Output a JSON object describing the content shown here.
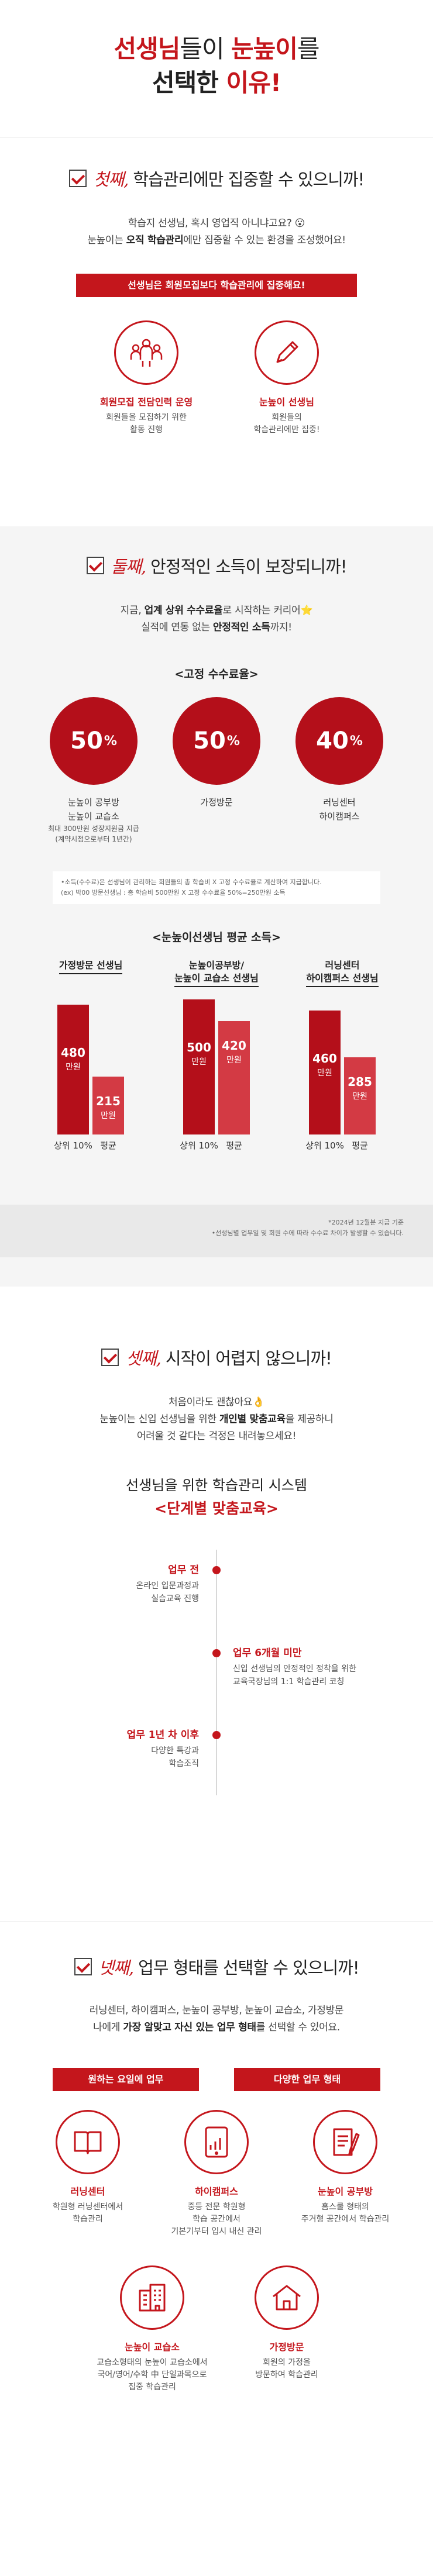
{
  "hero": {
    "line1_red": "선생님",
    "line1_mid": "들이 ",
    "line1_brand": "눈높이",
    "line1_end": "를",
    "line2_start": "선택한 ",
    "line2_end": "이유!"
  },
  "s1": {
    "script": "첫째,",
    "title_normal": " 학습관리에만 집중할 수 있으니까!",
    "p1": "학습지 선생님, 혹시 영업직 아니냐고요? 😮",
    "p2_a": "눈높이는 ",
    "p2_b": "오직 학습관리",
    "p2_c": "에만 집중할 수 있는 환경을 조성했어요!",
    "banner": "선생님은 회원모집보다 학습관리에 집중해요!",
    "items": [
      {
        "label": "회원모집 전담인력 운영",
        "desc1": "회원들을 모집하기 위한",
        "desc2": "활동 진행"
      },
      {
        "label": "눈높이 선생님",
        "desc1": "회원들의",
        "desc2": "학습관리에만 집중!"
      }
    ]
  },
  "s2": {
    "script": "둘째,",
    "title_normal": " 안정적인 소득이 보장되니까!",
    "p1_a": "지금, ",
    "p1_b": "업계 상위 수수료율",
    "p1_c": "로 시작하는 커리어⭐",
    "p2_a": "실적에 연동 없는 ",
    "p2_b": "안정적인 소득",
    "p2_c": "까지!",
    "fixed_rate_title": "<고정 수수료율>",
    "rates": [
      {
        "value": "50",
        "unit": "%",
        "l1": "눈높이 공부방",
        "l2": "눈높이 교습소",
        "l3": "최대 300만원 성장지원금 지급",
        "l4": "(계약시점으로부터 1년간)"
      },
      {
        "value": "50",
        "unit": "%",
        "l1": "가정방문",
        "l2": "",
        "l3": "",
        "l4": ""
      },
      {
        "value": "40",
        "unit": "%",
        "l1": "러닝센터",
        "l2": "하이캠퍼스",
        "l3": "",
        "l4": ""
      }
    ],
    "rate_note1": "•소득(수수료)은 선생님이 관리하는 회원들의 총 학습비 X 고정 수수료율로 계산하여 지급합니다.",
    "rate_note2": "(ex) 박00 방문선생님 : 총 학습비 500만원 X 고정 수수료율 50%=250만원 소득",
    "income_title": "<눈높이선생님 평균 소득>",
    "groups": [
      {
        "h1": "가정방문 선생님",
        "h2": ""
      },
      {
        "h1": "눈높이공부방/",
        "h2": "눈높이 교습소 선생님"
      },
      {
        "h1": "러닝센터",
        "h2": "하이캠퍼스 선생님"
      }
    ],
    "unit": "만원",
    "top_label": "상위 10%",
    "avg_label": "평균",
    "income_note1": "*2024년 12월분 지급 기준",
    "income_note2": "•선생님별 업무일 및 회원 수에 따라 수수료 차이가 발생할 수 있습니다."
  },
  "chart_data": {
    "type": "bar",
    "categories": [
      "가정방문 선생님",
      "눈높이공부방/눈높이 교습소 선생님",
      "러닝센터 하이캠퍼스 선생님"
    ],
    "series": [
      {
        "name": "상위 10%",
        "values": [
          480,
          500,
          460
        ]
      },
      {
        "name": "평균",
        "values": [
          215,
          420,
          285
        ]
      }
    ],
    "title": "<눈높이선생님 평균 소득>",
    "ylabel": "만원",
    "ylim": [
      0,
      520
    ]
  },
  "s3": {
    "script": "셋째,",
    "title_normal": " 시작이 어렵지 않으니까!",
    "p1": "처음이라도 괜찮아요👌",
    "p2_a": "눈높이는 신입 선생님을 위한 ",
    "p2_b": "개인별 맞춤교육",
    "p2_c": "을 제공하니",
    "p3": "어려울 것 같다는 걱정은 내려놓으세요!",
    "sys_title": "선생님을 위한 학습관리 시스템",
    "sys_sub": "<단계별 맞춤교육>",
    "steps": [
      {
        "title": "업무 전",
        "d1": "온라인 입문과정과",
        "d2": "실습교육 진행"
      },
      {
        "title": "업무 6개월 미만",
        "d1": "신입 선생님의 안정적인 정착을 위한",
        "d2": "교육국장님의 1:1 학습관리 코칭"
      },
      {
        "title": "업무 1년 차 이후",
        "d1": "다양한 특강과",
        "d2": "학습조직"
      }
    ]
  },
  "s4": {
    "script": "넷째,",
    "title_normal": " 업무 형태를 선택할 수 있으니까!",
    "p1": "러닝센터, 하이캠퍼스, 눈높이 공부방, 눈높이 교습소, 가정방문",
    "p2_a": "나에게 ",
    "p2_b": "가장 알맞고 자신 있는 업무 형태",
    "p2_c": "를 선택할 수 있어요.",
    "ribbon1": "원하는 요일에 업무",
    "ribbon2": "다양한 업무 형태",
    "types": [
      {
        "label": "러닝센터",
        "d1": "학원형 러닝센터에서",
        "d2": "학습관리",
        "d3": ""
      },
      {
        "label": "하이캠퍼스",
        "d1": "중등 전문 학원형",
        "d2": "학습 공간에서",
        "d3": "기본기부터 입시 내신 관리"
      },
      {
        "label": "눈높이 공부방",
        "d1": "홈스쿨 형태의",
        "d2": "주거형 공간에서 학습관리",
        "d3": ""
      },
      {
        "label": "눈높이 교습소",
        "d1": "교습소형태의 눈높이 교습소에서",
        "d2": "국어/영어/수학 中 단일과목으로",
        "d3": "집중 학습관리"
      },
      {
        "label": "가정방문",
        "d1": "회원의 가정을",
        "d2": "방문하여 학습관리",
        "d3": ""
      }
    ]
  }
}
